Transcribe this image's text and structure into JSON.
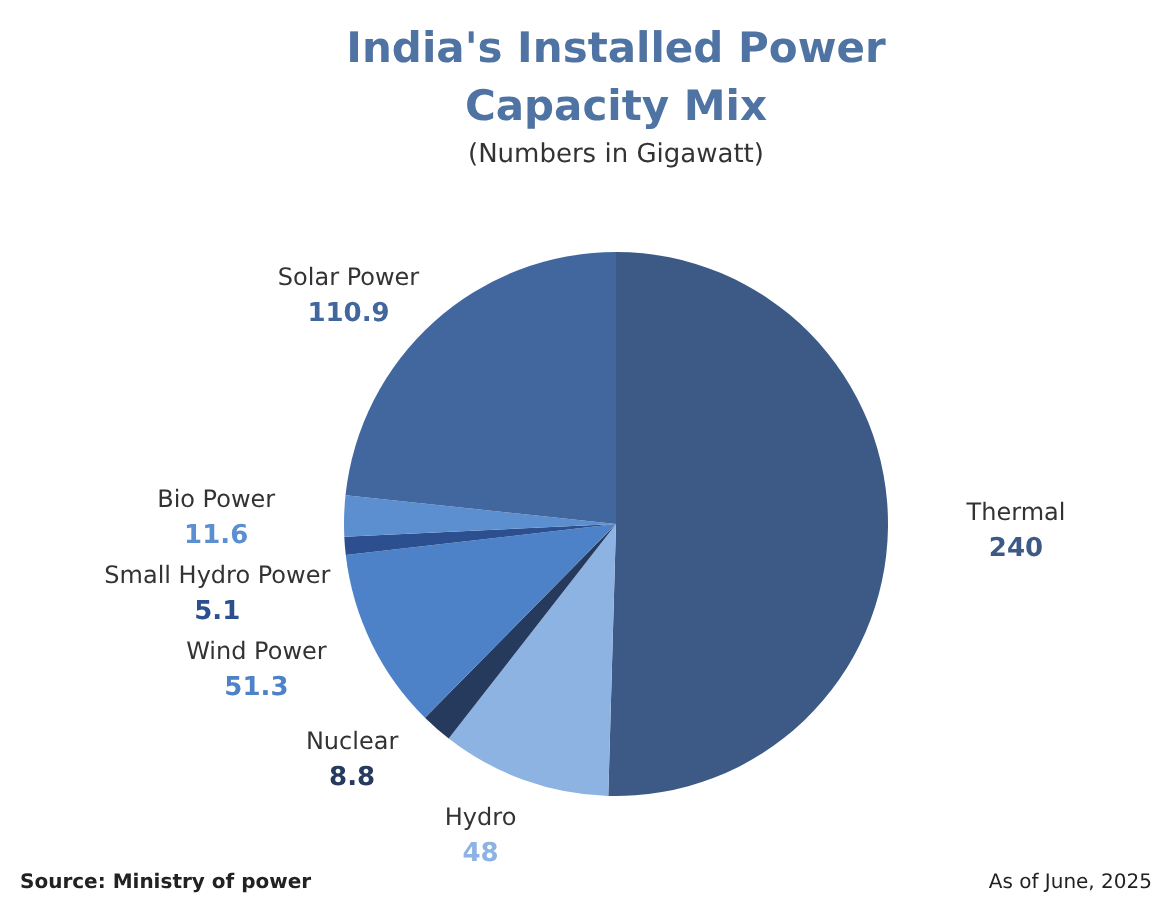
{
  "chart_data": {
    "type": "pie",
    "title": "India's Installed Power Capacity Mix",
    "subtitle": "(Numbers in Gigawatt)",
    "categories": [
      "Thermal",
      "Hydro",
      "Nuclear",
      "Wind Power",
      "Small Hydro Power",
      "Bio Power",
      "Solar Power"
    ],
    "values": [
      240,
      48,
      8.8,
      51.3,
      5.1,
      11.6,
      110.9
    ],
    "colors": [
      "#3d5a87",
      "#8db3e2",
      "#263a5e",
      "#4e82c8",
      "#2c4f8f",
      "#5b8fd0",
      "#41679e"
    ],
    "data_labels": true,
    "annotations": [
      "Source: Ministry of power",
      "As of June, 2025"
    ]
  }
}
